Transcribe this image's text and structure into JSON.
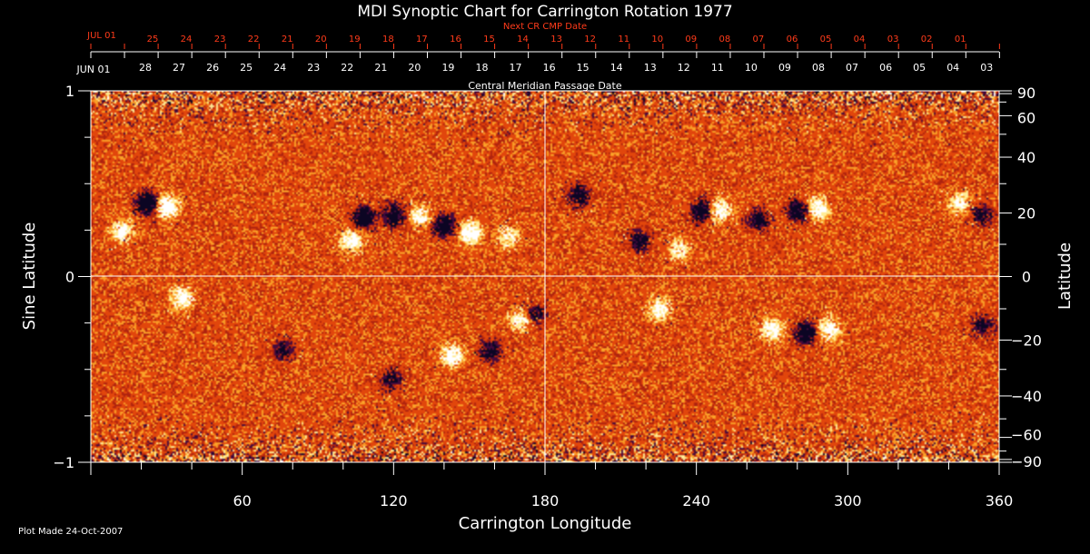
{
  "chart_data": {
    "type": "heatmap",
    "title": "MDI Synoptic Chart for Carrington Rotation 1977",
    "xlabel": "Carrington Longitude",
    "ylabel_left": "Sine Latitude",
    "ylabel_right": "Latitude",
    "top_axis_label": "Central Meridian Passage Date",
    "next_cr_label": "Next CR CMP Date",
    "plot_made": "Plot Made 24-Oct-2007",
    "xlim": [
      0,
      360
    ],
    "ylim": [
      -1,
      1
    ],
    "x_ticks": [
      "60",
      "120",
      "180",
      "240",
      "300",
      "360"
    ],
    "y_ticks_left": [
      "1",
      "0",
      "−1"
    ],
    "y_ticks_right": [
      "90",
      "60",
      "40",
      "20",
      "0",
      "−20",
      "−40",
      "−60",
      "−90"
    ],
    "cmp_start_label": "JUN 01",
    "cmp_dates": [
      "28",
      "27",
      "26",
      "25",
      "24",
      "23",
      "22",
      "21",
      "20",
      "19",
      "18",
      "17",
      "16",
      "15",
      "14",
      "13",
      "12",
      "11",
      "10",
      "09",
      "08",
      "07",
      "06",
      "05",
      "04",
      "03"
    ],
    "next_start_label": "JUL 01",
    "next_dates": [
      "25",
      "24",
      "23",
      "22",
      "21",
      "20",
      "19",
      "18",
      "17",
      "16",
      "15",
      "14",
      "13",
      "12",
      "11",
      "10",
      "09",
      "08",
      "07",
      "06",
      "05",
      "04",
      "03",
      "02",
      "01"
    ],
    "colors": {
      "background": "#000000",
      "field_base": "#e2440c",
      "positive": "#ffffff",
      "negative": "#10082a",
      "grid": "#ffffff",
      "accent_red": "#ff3b1a"
    },
    "regions": [
      {
        "lon": 22,
        "sinlat": 0.4,
        "polarity": "negative",
        "strength": 1.0
      },
      {
        "lon": 30,
        "sinlat": 0.38,
        "polarity": "positive",
        "strength": 0.9
      },
      {
        "lon": 12,
        "sinlat": 0.25,
        "polarity": "positive",
        "strength": 0.6
      },
      {
        "lon": 108,
        "sinlat": 0.32,
        "polarity": "negative",
        "strength": 0.9
      },
      {
        "lon": 103,
        "sinlat": 0.2,
        "polarity": "positive",
        "strength": 0.7
      },
      {
        "lon": 120,
        "sinlat": 0.33,
        "polarity": "negative",
        "strength": 0.8
      },
      {
        "lon": 130,
        "sinlat": 0.33,
        "polarity": "positive",
        "strength": 0.6
      },
      {
        "lon": 140,
        "sinlat": 0.28,
        "polarity": "negative",
        "strength": 0.8
      },
      {
        "lon": 150,
        "sinlat": 0.24,
        "polarity": "positive",
        "strength": 0.9
      },
      {
        "lon": 165,
        "sinlat": 0.22,
        "polarity": "positive",
        "strength": 0.5
      },
      {
        "lon": 193,
        "sinlat": 0.44,
        "polarity": "negative",
        "strength": 0.6
      },
      {
        "lon": 217,
        "sinlat": 0.2,
        "polarity": "negative",
        "strength": 0.6
      },
      {
        "lon": 233,
        "sinlat": 0.15,
        "polarity": "positive",
        "strength": 0.5
      },
      {
        "lon": 242,
        "sinlat": 0.36,
        "polarity": "negative",
        "strength": 0.8
      },
      {
        "lon": 249,
        "sinlat": 0.36,
        "polarity": "positive",
        "strength": 0.7
      },
      {
        "lon": 264,
        "sinlat": 0.31,
        "polarity": "negative",
        "strength": 0.6
      },
      {
        "lon": 280,
        "sinlat": 0.36,
        "polarity": "negative",
        "strength": 0.7
      },
      {
        "lon": 288,
        "sinlat": 0.37,
        "polarity": "positive",
        "strength": 0.7
      },
      {
        "lon": 344,
        "sinlat": 0.4,
        "polarity": "positive",
        "strength": 0.5
      },
      {
        "lon": 353,
        "sinlat": 0.34,
        "polarity": "negative",
        "strength": 0.5
      },
      {
        "lon": 36,
        "sinlat": -0.11,
        "polarity": "positive",
        "strength": 0.7
      },
      {
        "lon": 76,
        "sinlat": -0.39,
        "polarity": "negative",
        "strength": 0.5
      },
      {
        "lon": 119,
        "sinlat": -0.55,
        "polarity": "negative",
        "strength": 0.5
      },
      {
        "lon": 143,
        "sinlat": -0.42,
        "polarity": "positive",
        "strength": 0.7
      },
      {
        "lon": 158,
        "sinlat": -0.4,
        "polarity": "negative",
        "strength": 0.6
      },
      {
        "lon": 170,
        "sinlat": -0.23,
        "polarity": "positive",
        "strength": 0.6
      },
      {
        "lon": 176,
        "sinlat": -0.2,
        "polarity": "negative",
        "strength": 0.5
      },
      {
        "lon": 225,
        "sinlat": -0.17,
        "polarity": "positive",
        "strength": 0.6
      },
      {
        "lon": 270,
        "sinlat": -0.28,
        "polarity": "positive",
        "strength": 0.7
      },
      {
        "lon": 283,
        "sinlat": -0.3,
        "polarity": "negative",
        "strength": 0.9
      },
      {
        "lon": 292,
        "sinlat": -0.28,
        "polarity": "positive",
        "strength": 0.7
      },
      {
        "lon": 353,
        "sinlat": -0.26,
        "polarity": "negative",
        "strength": 0.5
      }
    ]
  }
}
